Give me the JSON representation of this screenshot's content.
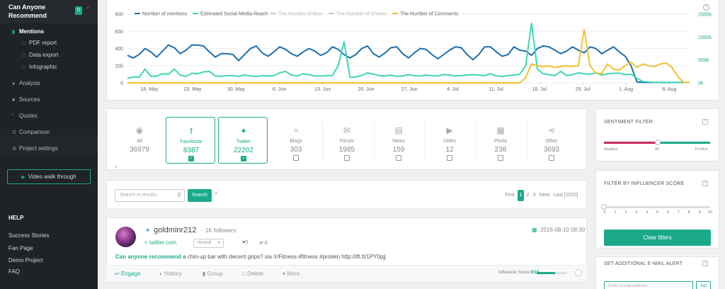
{
  "sidebar": {
    "project_title": "Can Anyone Recommend",
    "project_badge": "0",
    "items": [
      {
        "label": "Mentions",
        "icon": "bar-chart-icon",
        "active": true
      },
      {
        "label": "Analysis",
        "icon": "pie-chart-icon"
      },
      {
        "label": "Sources",
        "icon": "briefcase-icon"
      },
      {
        "label": "Quotes",
        "icon": "quote-icon"
      },
      {
        "label": "Comparison",
        "icon": "list-icon"
      },
      {
        "label": "Project settings",
        "icon": "cogs-icon"
      }
    ],
    "subitems": [
      {
        "label": "PDF report",
        "icon": "file-pdf-icon"
      },
      {
        "label": "Data export",
        "icon": "file-excel-icon"
      },
      {
        "label": "Infographic",
        "icon": "image-icon"
      }
    ],
    "video_button": "Video walk through",
    "help_title": "HELP",
    "help_links": [
      "Success Stories",
      "Fan Page",
      "Demo Project",
      "FAQ"
    ]
  },
  "chart_data": {
    "type": "line",
    "title": "",
    "legend": [
      "Number of mentions",
      "Estimated Social Media Reach",
      "The Number of likes",
      "The Number of Shares",
      "The Number of Comments"
    ],
    "legend_colors": [
      "#1f6fab",
      "#3fd6b3",
      "#c9c9c9",
      "#c9c9c9",
      "#f2c12e"
    ],
    "legend_placement": "top-left",
    "x_ticks": [
      "16. May",
      "23. May",
      "30. May",
      "6. Jun",
      "13. Jun",
      "20. Jun",
      "27. Jun",
      "4. Jul",
      "11. Jul",
      "18. Jul",
      "25. Jul",
      "1. Aug",
      "8. Aug"
    ],
    "y_left_ticks": [
      "0",
      "200",
      "400",
      "600",
      "800"
    ],
    "y_right_ticks": [
      "0k",
      "500k",
      "1000k",
      "1500k"
    ],
    "ylim_left": [
      0,
      800
    ],
    "ylim_right": [
      0,
      1500000
    ],
    "grid": true,
    "series": [
      {
        "name": "Number of mentions",
        "axis": "left",
        "color": "#1f6fab",
        "values": [
          320,
          290,
          330,
          400,
          360,
          300,
          370,
          440,
          410,
          340,
          380,
          440,
          440,
          430,
          360,
          300,
          340,
          340,
          330,
          260,
          330,
          400,
          430,
          350,
          310,
          360,
          420,
          390,
          340,
          310,
          360,
          400,
          370,
          320,
          350,
          420,
          390,
          330,
          290,
          330,
          400,
          430,
          340,
          300,
          350,
          410,
          420,
          340,
          290,
          350,
          400,
          390,
          330,
          280,
          330,
          380,
          420,
          410,
          330,
          270,
          330,
          420,
          420,
          360,
          310,
          330,
          420,
          380,
          370,
          320,
          400,
          430,
          420,
          380,
          340,
          370,
          420,
          380,
          350,
          420,
          400,
          340,
          380,
          420,
          360,
          310,
          200,
          10,
          5,
          5,
          5,
          5,
          5,
          5,
          5,
          5,
          5
        ]
      },
      {
        "name": "Estimated Social Media Reach",
        "axis": "right",
        "values": [
          100000,
          130000,
          120000,
          300000,
          140000,
          150000,
          200000,
          190000,
          300000,
          170000,
          140000,
          210000,
          200000,
          240000,
          250000,
          150000,
          140000,
          160000,
          160000,
          140000,
          170000,
          150000,
          140000,
          160000,
          150000,
          160000,
          220000,
          250000,
          170000,
          150000,
          200000,
          180000,
          150000,
          150000,
          160000,
          160000,
          380000,
          900000,
          120000,
          130000,
          160000,
          220000,
          190000,
          160000,
          150000,
          170000,
          140000,
          150000,
          180000,
          160000,
          150000,
          170000,
          160000,
          150000,
          180000,
          170000,
          150000,
          160000,
          170000,
          180000,
          170000,
          160000,
          200000,
          150000,
          140000,
          160000,
          170000,
          190000,
          370000,
          1300000,
          300000,
          200000,
          180000,
          160000,
          250000,
          160000,
          180000,
          220000,
          200000,
          190000,
          220000,
          170000,
          200000,
          210000,
          210000,
          180000,
          190000,
          100000,
          30000,
          20000,
          10000,
          10000,
          10000,
          10000,
          10000,
          10000,
          10000
        ],
        "color": "#3fd6b3"
      },
      {
        "name": "The Number of Comments",
        "axis": "left",
        "color": "#f2c12e",
        "values": [
          0,
          0,
          0,
          0,
          0,
          0,
          0,
          0,
          0,
          0,
          0,
          0,
          0,
          0,
          0,
          0,
          0,
          0,
          0,
          0,
          0,
          0,
          0,
          0,
          0,
          0,
          0,
          0,
          0,
          0,
          0,
          0,
          0,
          0,
          0,
          0,
          0,
          0,
          0,
          0,
          0,
          0,
          0,
          0,
          0,
          0,
          0,
          0,
          0,
          0,
          0,
          0,
          0,
          0,
          0,
          0,
          0,
          0,
          0,
          0,
          0,
          0,
          0,
          0,
          0,
          0,
          0,
          0,
          60,
          220,
          200,
          190,
          200,
          180,
          190,
          200,
          190,
          200,
          620,
          200,
          110,
          110,
          220,
          160,
          150,
          200,
          240,
          180,
          220,
          200,
          190,
          220,
          230,
          180,
          70,
          5,
          5
        ]
      }
    ]
  },
  "sources": {
    "items": [
      {
        "label": "All",
        "count": "36979",
        "icon": "globe-icon",
        "selected": false,
        "checkbox": false
      },
      {
        "label": "Facebook",
        "count": "8387",
        "icon": "facebook-icon",
        "selected": true,
        "checkbox": true
      },
      {
        "label": "Twitter",
        "count": "22202",
        "icon": "twitter-icon",
        "selected": true,
        "checkbox": true
      },
      {
        "label": "Blogs",
        "count": "303",
        "icon": "rss-icon",
        "selected": false,
        "checkbox": true
      },
      {
        "label": "Forum",
        "count": "1985",
        "icon": "comments-icon",
        "selected": false,
        "checkbox": true
      },
      {
        "label": "News",
        "count": "159",
        "icon": "newspaper-icon",
        "selected": false,
        "checkbox": true
      },
      {
        "label": "Video",
        "count": "12",
        "icon": "youtube-play-icon",
        "selected": false,
        "checkbox": true
      },
      {
        "label": "Photo",
        "count": "238",
        "icon": "photo-icon",
        "selected": false,
        "checkbox": true
      },
      {
        "label": "Other",
        "count": "3693",
        "icon": "share-icon",
        "selected": false,
        "checkbox": true
      }
    ]
  },
  "search": {
    "placeholder": "Search in results",
    "button": "Search",
    "help": "?"
  },
  "pagination": [
    "First",
    "1",
    "2",
    "3",
    "Next",
    "Last [1020]"
  ],
  "mention": {
    "username": "goldminr212",
    "followers": "1K followers",
    "date": "2016-08-10 08:30",
    "source_link": "twitter.com",
    "sentiment": "Neutral",
    "likes": "0",
    "retweets": "0",
    "text_highlight": "Can anyone recommend",
    "text_rest": " a chin-up bar with decent grips? via /r/Fitness #fitness #protein http://ift.tt/1PY0pjj",
    "actions": [
      "Engage",
      "History",
      "Group",
      "Delete",
      "More"
    ],
    "influencer_label": "Influencer Score",
    "influencer_score": "6/10",
    "influencer_fraction": 0.6
  },
  "right_panel": {
    "sentiment_title": "SENTIMENT FILTER",
    "sentiment_labels": [
      "Negative",
      "All",
      "Positive"
    ],
    "influencer_title": "FILTER BY INFLUENCER SCORE",
    "influencer_ticks": [
      "0",
      "1",
      "2",
      "3",
      "4",
      "5",
      "6",
      "7",
      "8",
      "9",
      "10"
    ],
    "clear_button": "Clear filters",
    "alert_title": "SET ADDITIONAL E-MAIL ALERT",
    "email_placeholder": "Enter e-mail address",
    "email_button": "Set",
    "help": "?"
  }
}
